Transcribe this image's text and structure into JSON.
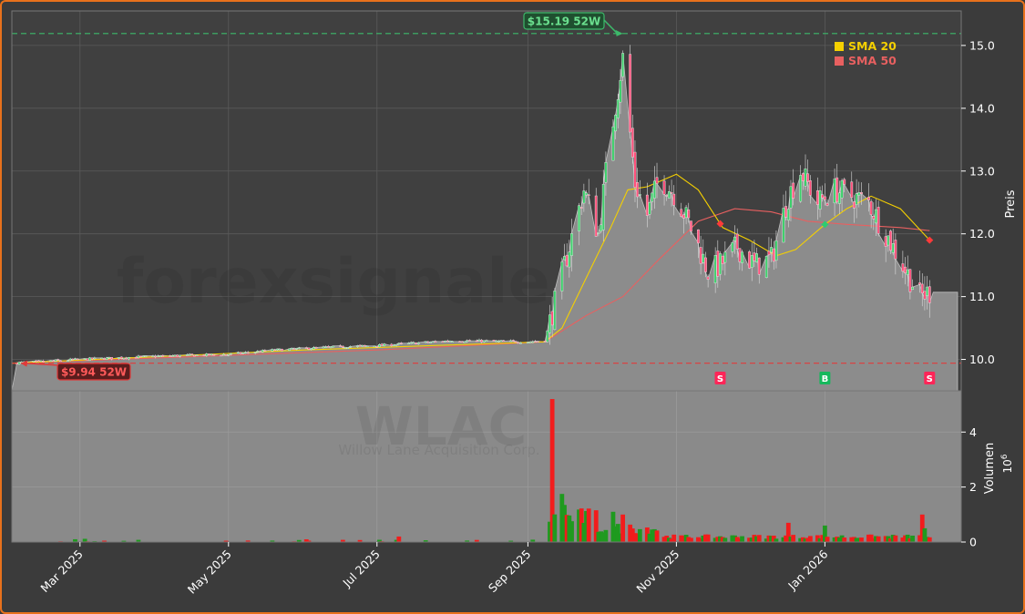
{
  "chart_data": {
    "type": "candlestick",
    "ticker_watermark": "WLAC",
    "company_watermark": "Willow Lane Acquisition Corp.",
    "site_watermark": "forexsignale.trade",
    "price_axis_label": "Preis",
    "volume_axis_label": "Volumen",
    "volume_multiplier_label": "10",
    "volume_multiplier_exp": "6",
    "x_range": [
      "2025-02-01",
      "2026-02-26"
    ],
    "price_ylim": [
      9.5,
      15.55
    ],
    "price_ticks": [
      "10.0",
      "11.0",
      "12.0",
      "13.0",
      "14.0",
      "15.0"
    ],
    "volume_ylim": [
      0,
      5.5
    ],
    "volume_ticks": [
      "0",
      "2",
      "4"
    ],
    "x_ticks": [
      {
        "date": "2025-03-01",
        "label": "Mar 2025"
      },
      {
        "date": "2025-05-01",
        "label": "May 2025"
      },
      {
        "date": "2025-07-01",
        "label": "Jul 2025"
      },
      {
        "date": "2025-09-01",
        "label": "Sep 2025"
      },
      {
        "date": "2025-11-01",
        "label": "Nov 2025"
      },
      {
        "date": "2026-01-01",
        "label": "Jan 2026"
      }
    ],
    "legend": [
      {
        "name": "SMA 20",
        "color": "#f5d000"
      },
      {
        "name": "SMA 50",
        "color": "#e86060"
      }
    ],
    "high_52w": {
      "value": 15.19,
      "label": "$15.19 52W",
      "date": "2025-10-10"
    },
    "low_52w": {
      "value": 9.94,
      "label": "$9.94 52W",
      "date": "2025-02-03"
    },
    "last_close": 11.07,
    "signals": [
      {
        "date": "2025-11-19",
        "label": "S",
        "type": "sell"
      },
      {
        "date": "2026-01-01",
        "label": "B",
        "type": "buy"
      },
      {
        "date": "2026-02-13",
        "label": "S",
        "type": "sell"
      }
    ],
    "close_anchors": [
      [
        "2025-02-01",
        9.94
      ],
      [
        "2025-03-01",
        10.0
      ],
      [
        "2025-04-01",
        10.05
      ],
      [
        "2025-05-01",
        10.08
      ],
      [
        "2025-05-20",
        10.15
      ],
      [
        "2025-06-15",
        10.2
      ],
      [
        "2025-07-01",
        10.22
      ],
      [
        "2025-08-01",
        10.3
      ],
      [
        "2025-09-01",
        10.28
      ],
      [
        "2025-09-08",
        10.3
      ],
      [
        "2025-09-12",
        10.9
      ],
      [
        "2025-09-18",
        11.8
      ],
      [
        "2025-09-24",
        12.7
      ],
      [
        "2025-09-30",
        12.0
      ],
      [
        "2025-10-04",
        13.3
      ],
      [
        "2025-10-10",
        14.8
      ],
      [
        "2025-10-15",
        12.8
      ],
      [
        "2025-10-20",
        12.3
      ],
      [
        "2025-10-25",
        12.9
      ],
      [
        "2025-11-01",
        12.6
      ],
      [
        "2025-11-08",
        12.0
      ],
      [
        "2025-11-14",
        11.4
      ],
      [
        "2025-11-19",
        11.5
      ],
      [
        "2025-11-26",
        11.8
      ],
      [
        "2025-12-03",
        11.5
      ],
      [
        "2025-12-10",
        11.6
      ],
      [
        "2025-12-17",
        12.6
      ],
      [
        "2025-12-22",
        13.0
      ],
      [
        "2025-12-29",
        12.5
      ],
      [
        "2026-01-05",
        12.7
      ],
      [
        "2026-01-12",
        12.6
      ],
      [
        "2026-01-19",
        12.5
      ],
      [
        "2026-01-26",
        12.0
      ],
      [
        "2026-02-02",
        11.5
      ],
      [
        "2026-02-09",
        11.0
      ],
      [
        "2026-02-13",
        11.07
      ]
    ],
    "sma20_anchors": [
      [
        "2025-02-01",
        9.94
      ],
      [
        "2025-06-01",
        10.15
      ],
      [
        "2025-09-08",
        10.28
      ],
      [
        "2025-09-15",
        10.5
      ],
      [
        "2025-09-25",
        11.3
      ],
      [
        "2025-10-05",
        12.1
      ],
      [
        "2025-10-12",
        12.7
      ],
      [
        "2025-10-20",
        12.75
      ],
      [
        "2025-11-01",
        12.95
      ],
      [
        "2025-11-10",
        12.7
      ],
      [
        "2025-11-20",
        12.1
      ],
      [
        "2025-12-01",
        11.9
      ],
      [
        "2025-12-12",
        11.65
      ],
      [
        "2025-12-20",
        11.75
      ],
      [
        "2026-01-01",
        12.15
      ],
      [
        "2026-01-10",
        12.4
      ],
      [
        "2026-01-20",
        12.6
      ],
      [
        "2026-02-01",
        12.4
      ],
      [
        "2026-02-13",
        11.9
      ]
    ],
    "sma50_anchors": [
      [
        "2025-02-01",
        9.94
      ],
      [
        "2025-07-01",
        10.15
      ],
      [
        "2025-09-08",
        10.28
      ],
      [
        "2025-09-25",
        10.7
      ],
      [
        "2025-10-10",
        11.0
      ],
      [
        "2025-10-25",
        11.6
      ],
      [
        "2025-11-10",
        12.2
      ],
      [
        "2025-11-25",
        12.4
      ],
      [
        "2025-12-10",
        12.35
      ],
      [
        "2025-12-25",
        12.2
      ],
      [
        "2026-01-10",
        12.15
      ],
      [
        "2026-02-01",
        12.1
      ],
      [
        "2026-02-13",
        12.05
      ]
    ],
    "volume_events": [
      {
        "date": "2025-06-21",
        "value": 0.55,
        "up": true
      },
      {
        "date": "2025-06-28",
        "value": 0.55,
        "up": true
      },
      {
        "date": "2025-07-10",
        "value": 0.2,
        "up": false
      },
      {
        "date": "2025-09-11",
        "value": 5.2,
        "up": false
      },
      {
        "date": "2025-09-13",
        "value": 0.8,
        "up": true
      },
      {
        "date": "2025-09-15",
        "value": 1.75,
        "up": true
      },
      {
        "date": "2025-09-16",
        "value": 1.35,
        "up": true
      },
      {
        "date": "2025-10-06",
        "value": 1.1,
        "up": true
      },
      {
        "date": "2025-10-10",
        "value": 1.0,
        "up": false
      },
      {
        "date": "2025-12-17",
        "value": 0.7,
        "up": false
      },
      {
        "date": "2026-01-01",
        "value": 0.6,
        "up": true
      },
      {
        "date": "2026-02-10",
        "value": 1.0,
        "up": false
      },
      {
        "date": "2026-02-11",
        "value": 0.5,
        "up": true
      }
    ]
  }
}
